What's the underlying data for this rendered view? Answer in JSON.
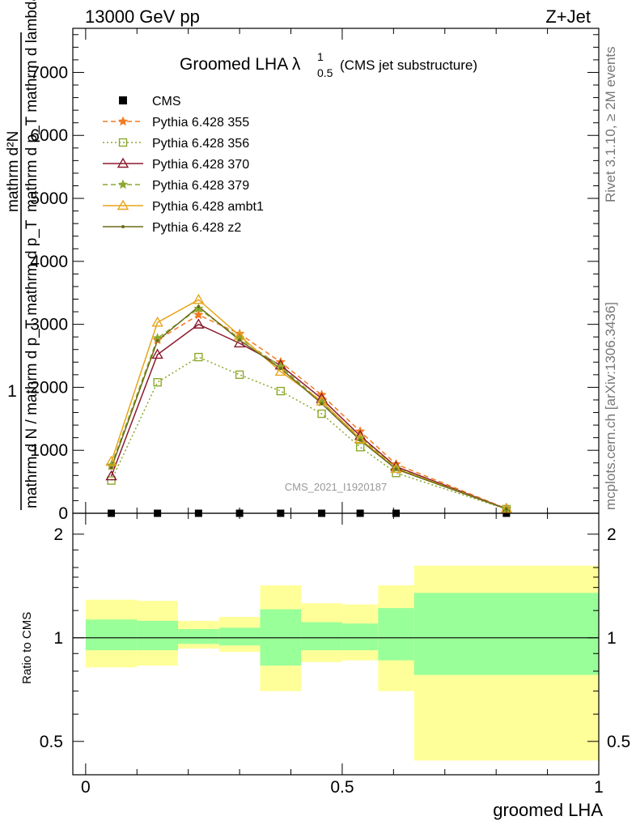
{
  "header": {
    "left": "13000 GeV pp",
    "right": "Z+Jet"
  },
  "side_text": {
    "right_top": "Rivet 3.1.10, ≥ 2M events",
    "right_bottom": "mcplots.cern.ch [arXiv:1306.3436]"
  },
  "watermark": "CMS_2021_I1920187",
  "chart_data": [
    {
      "type": "line",
      "panel": "main",
      "title": "Groomed LHA",
      "title_symbol": "λ",
      "title_sup": "1",
      "title_sub": "0.5",
      "title_suffix": "(CMS jet substructure)",
      "ylabel": {
        "numerator": "1",
        "denominator": "mathrm d N / mathrm d p_T mathrm d p_T",
        "right_num": "mathrm d²N",
        "right_den": "mathrm d p_T mathrm d lambda"
      },
      "xlim": [
        -0.025,
        1.0
      ],
      "ylim": [
        0,
        7700
      ],
      "yticks": [
        0,
        1000,
        2000,
        3000,
        4000,
        5000,
        6000,
        7000
      ],
      "ytick_labels": [
        "0",
        "1000",
        "2000",
        "3000",
        "4000",
        "5000",
        "6000",
        "7000"
      ],
      "x_bin_centers": [
        0.05,
        0.14,
        0.22,
        0.3,
        0.38,
        0.46,
        0.535,
        0.605,
        0.82
      ],
      "legend_position": "top-left",
      "series": [
        {
          "name": "CMS",
          "color": "#000000",
          "marker": "square",
          "line": "none",
          "values": [
            0,
            0,
            0,
            0,
            0,
            0,
            0,
            0,
            0
          ]
        },
        {
          "name": "Pythia 6.428 355",
          "color": "#f47a20",
          "marker": "star",
          "line": "dashed",
          "values": [
            750,
            2750,
            3150,
            2850,
            2400,
            1880,
            1300,
            780,
            75
          ]
        },
        {
          "name": "Pythia 6.428 356",
          "color": "#8ca82c",
          "marker": "open-square",
          "line": "dotted",
          "values": [
            520,
            2080,
            2480,
            2200,
            1940,
            1580,
            1050,
            640,
            65
          ]
        },
        {
          "name": "Pythia 6.428 370",
          "color": "#8b1a2e",
          "marker": "open-triangle",
          "line": "solid",
          "values": [
            590,
            2520,
            3000,
            2700,
            2350,
            1820,
            1230,
            740,
            72
          ]
        },
        {
          "name": "Pythia 6.428 379",
          "color": "#8ca82c",
          "marker": "star",
          "line": "dashed",
          "values": [
            760,
            2780,
            3250,
            2780,
            2330,
            1760,
            1200,
            720,
            70
          ]
        },
        {
          "name": "Pythia 6.428 ambt1",
          "color": "#e8a419",
          "marker": "open-triangle",
          "line": "solid",
          "values": [
            820,
            3030,
            3390,
            2820,
            2250,
            1780,
            1180,
            710,
            70
          ]
        },
        {
          "name": "Pythia 6.428 z2",
          "color": "#6b6b1a",
          "marker": "dot",
          "line": "solid",
          "values": [
            720,
            2740,
            3280,
            2750,
            2300,
            1740,
            1160,
            700,
            68
          ]
        }
      ]
    },
    {
      "type": "area",
      "panel": "ratio",
      "xlabel": "groomed LHA",
      "ylabel": "Ratio to CMS",
      "xlim": [
        -0.025,
        1.0
      ],
      "ylim": [
        0.4,
        2.3
      ],
      "xticks": [
        0,
        0.5,
        1
      ],
      "xtick_labels": [
        "0",
        "0.5",
        "1"
      ],
      "yticks": [
        0.5,
        1,
        2
      ],
      "ytick_labels": [
        "0.5",
        "1",
        "2"
      ],
      "reference_line": 1,
      "bins": [
        {
          "lo": 0.0,
          "hi": 0.1,
          "yellow": [
            0.82,
            1.29
          ],
          "green": [
            0.92,
            1.13
          ]
        },
        {
          "lo": 0.1,
          "hi": 0.18,
          "yellow": [
            0.83,
            1.28
          ],
          "green": [
            0.92,
            1.12
          ]
        },
        {
          "lo": 0.18,
          "hi": 0.26,
          "yellow": [
            0.93,
            1.12
          ],
          "green": [
            0.96,
            1.06
          ]
        },
        {
          "lo": 0.26,
          "hi": 0.34,
          "yellow": [
            0.91,
            1.15
          ],
          "green": [
            0.95,
            1.07
          ]
        },
        {
          "lo": 0.34,
          "hi": 0.42,
          "yellow": [
            0.7,
            1.42
          ],
          "green": [
            0.83,
            1.21
          ]
        },
        {
          "lo": 0.42,
          "hi": 0.5,
          "yellow": [
            0.85,
            1.26
          ],
          "green": [
            0.92,
            1.11
          ]
        },
        {
          "lo": 0.5,
          "hi": 0.57,
          "yellow": [
            0.86,
            1.25
          ],
          "green": [
            0.92,
            1.1
          ]
        },
        {
          "lo": 0.57,
          "hi": 0.64,
          "yellow": [
            0.7,
            1.42
          ],
          "green": [
            0.86,
            1.22
          ]
        },
        {
          "lo": 0.64,
          "hi": 1.0,
          "yellow": [
            0.44,
            1.62
          ],
          "green": [
            0.78,
            1.35
          ]
        }
      ],
      "colors": {
        "yellow": "#ffff99",
        "green": "#99ff99"
      }
    }
  ]
}
